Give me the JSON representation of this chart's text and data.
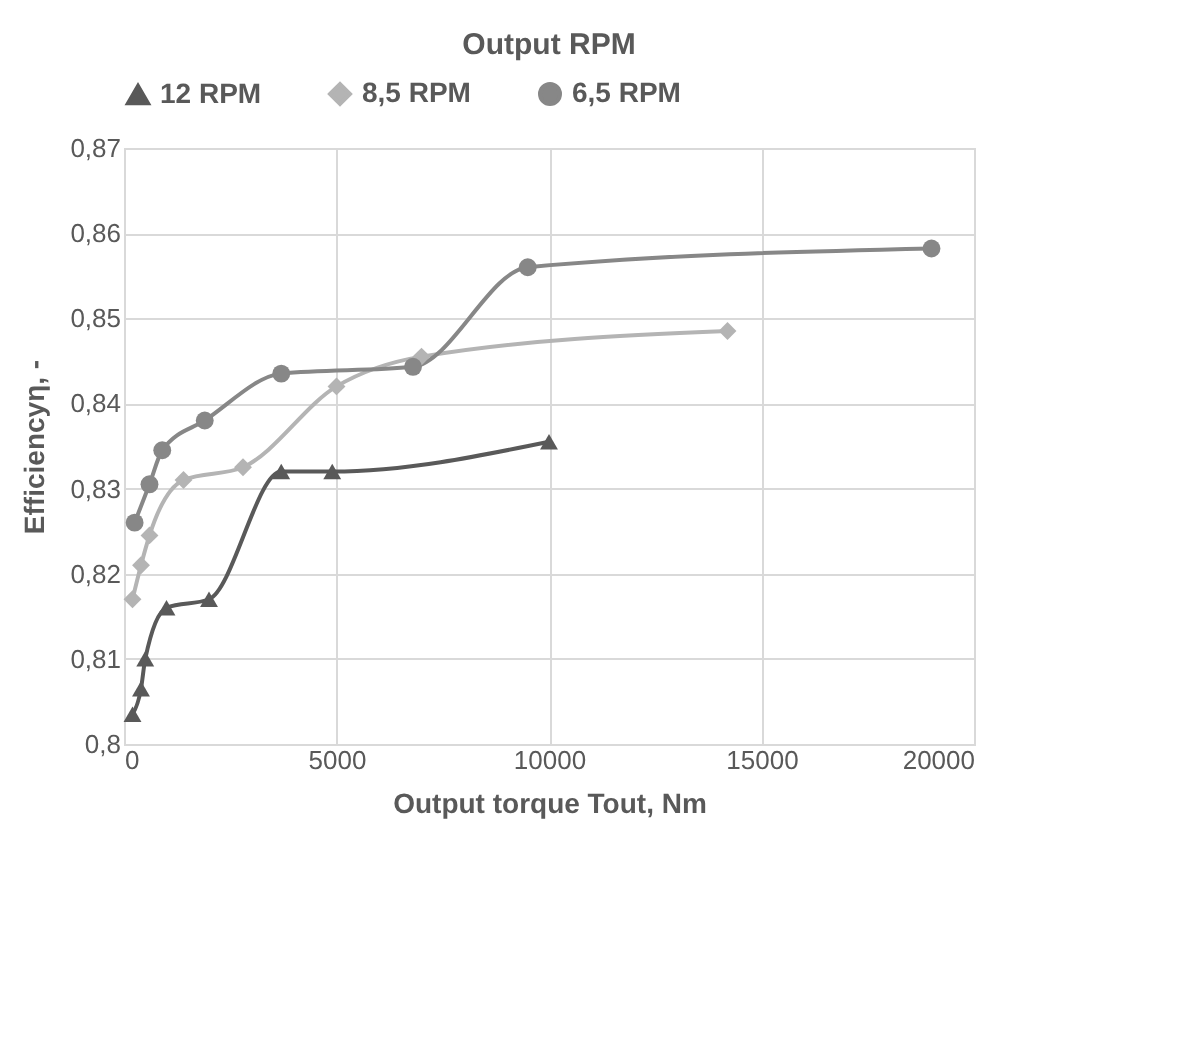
{
  "chart_data": {
    "type": "line",
    "title": "Output RPM",
    "xlabel": "Output torque Tout, Nm",
    "ylabel": "Efficiencyη, -",
    "xlim": [
      0,
      20000
    ],
    "xticks": [
      0,
      5000,
      10000,
      15000,
      20000
    ],
    "ylim": [
      0.8,
      0.87
    ],
    "yticks": [
      {
        "value": 0.8,
        "label": "0,8"
      },
      {
        "value": 0.81,
        "label": "0,81"
      },
      {
        "value": 0.82,
        "label": "0,82"
      },
      {
        "value": 0.83,
        "label": "0,83"
      },
      {
        "value": 0.84,
        "label": "0,84"
      },
      {
        "value": 0.85,
        "label": "0,85"
      },
      {
        "value": 0.86,
        "label": "0,86"
      },
      {
        "value": 0.87,
        "label": "0,87"
      }
    ],
    "grid": true,
    "legend": "top",
    "series": [
      {
        "name": "12 RPM",
        "color": "#595959",
        "marker": "triangle",
        "x": [
          200,
          400,
          500,
          1000,
          2000,
          3700,
          4900,
          10000
        ],
        "values": [
          0.8035,
          0.8065,
          0.81,
          0.816,
          0.817,
          0.832,
          0.832,
          0.8355
        ]
      },
      {
        "name": "8,5 RPM",
        "color": "#b4b4b4",
        "marker": "diamond",
        "x": [
          200,
          400,
          600,
          1400,
          2800,
          5000,
          7000,
          14200
        ],
        "values": [
          0.817,
          0.821,
          0.8245,
          0.831,
          0.8325,
          0.842,
          0.8455,
          0.8485
        ]
      },
      {
        "name": "6,5 RPM",
        "color": "#878787",
        "marker": "circle",
        "x": [
          250,
          600,
          900,
          1900,
          3700,
          6800,
          9500,
          19000
        ],
        "values": [
          0.826,
          0.8305,
          0.8345,
          0.838,
          0.8435,
          0.8443,
          0.856,
          0.8582
        ]
      }
    ]
  }
}
